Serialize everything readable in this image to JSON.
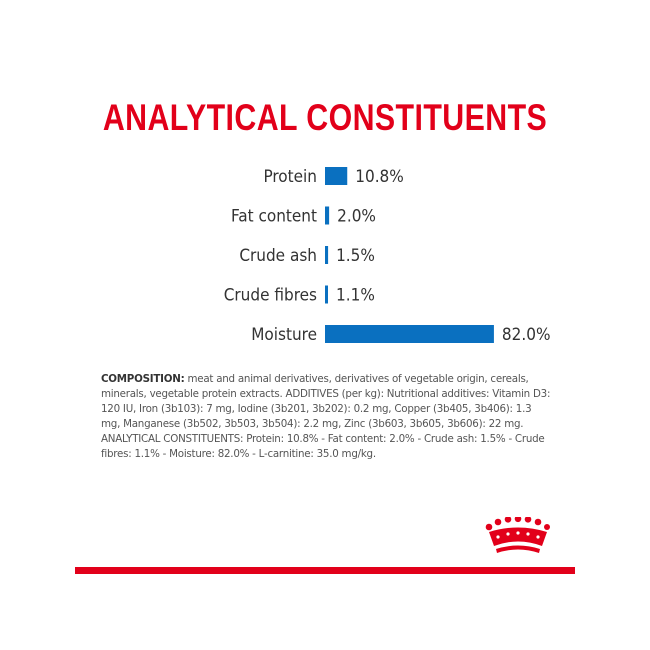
{
  "title": "ANALYTICAL CONSTITUENTS",
  "chart_data": {
    "type": "bar",
    "orientation": "horizontal",
    "title": "ANALYTICAL CONSTITUENTS",
    "categories": [
      "Protein",
      "Fat content",
      "Crude ash",
      "Crude fibres",
      "Moisture"
    ],
    "values": [
      10.8,
      2.0,
      1.5,
      1.1,
      82.0
    ],
    "value_labels": [
      "10.8%",
      "2.0%",
      "1.5%",
      "1.1%",
      "82.0%"
    ],
    "unit": "%",
    "bar_color": "#0a70c0",
    "label_color": "#333333"
  },
  "composition": {
    "label": "COMPOSITION:",
    "text": " meat and animal derivatives, derivatives of vegetable origin, cereals, minerals, vegetable protein extracts. ADDITIVES (per kg): Nutritional additives: Vitamin D3: 120 IU, Iron (3b103): 7 mg, Iodine (3b201, 3b202): 0.2 mg, Copper (3b405, 3b406): 1.3 mg, Manganese (3b502, 3b503, 3b504): 2.2 mg, Zinc (3b603, 3b605, 3b606): 22 mg. ANALYTICAL CONSTITUENTS: Protein: 10.8% - Fat content: 2.0% - Crude ash: 1.5% - Crude fibres: 1.1% - Moisture: 82.0% - L-carnitine: 35.0 mg/kg."
  },
  "colors": {
    "brand_red": "#e2001a",
    "bar_blue": "#0a70c0"
  },
  "logo": {
    "icon": "crown-icon"
  }
}
